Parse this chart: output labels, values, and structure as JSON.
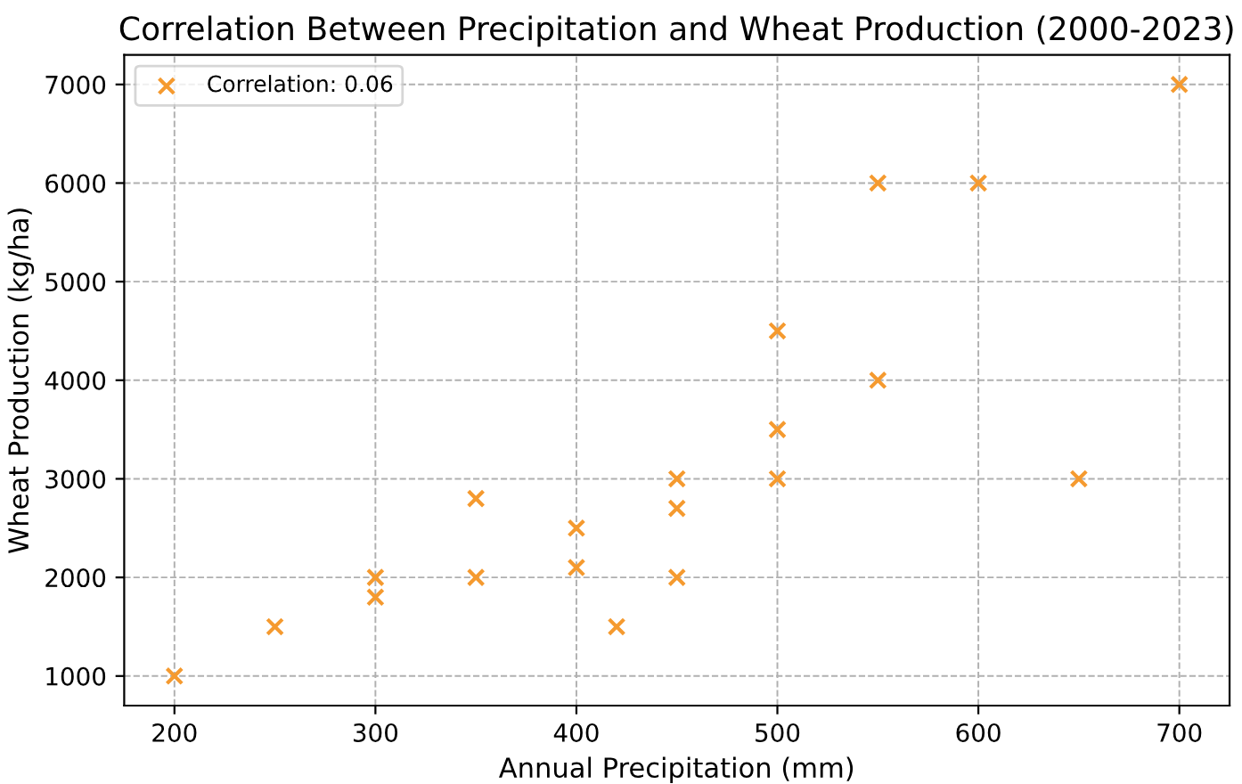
{
  "chart_data": {
    "type": "scatter",
    "title": "Correlation Between Precipitation and Wheat Production (2000-2023)",
    "xlabel": "Annual Precipitation (mm)",
    "ylabel": "Wheat Production (kg/ha)",
    "series": [
      {
        "name": "Correlation: 0.06",
        "color": "#f59a2f",
        "x": [
          200,
          250,
          300,
          300,
          350,
          350,
          400,
          400,
          420,
          450,
          450,
          450,
          500,
          500,
          500,
          550,
          550,
          600,
          650,
          700
        ],
        "values": [
          1000,
          1500,
          2000,
          1800,
          2800,
          2000,
          2500,
          2100,
          1500,
          3000,
          2700,
          2000,
          4500,
          3500,
          3000,
          6000,
          4000,
          6000,
          3000,
          7000
        ]
      }
    ],
    "xlim": [
      175,
      725
    ],
    "ylim": [
      700,
      7300
    ],
    "xticks": [
      200,
      300,
      400,
      500,
      600,
      700
    ],
    "yticks": [
      1000,
      2000,
      3000,
      4000,
      5000,
      6000,
      7000
    ],
    "grid": true,
    "legend": "top left",
    "marker": "cross"
  }
}
